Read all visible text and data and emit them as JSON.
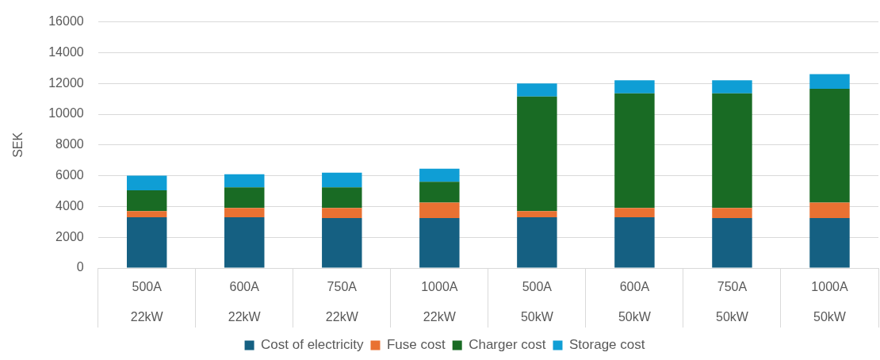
{
  "chart_data": {
    "type": "bar",
    "ylabel": "SEK",
    "categories": [
      "500A\n22kW",
      "600A\n22kW",
      "750A\n22kW",
      "1000A\n22kW",
      "500A\n50kW",
      "600A\n50kW",
      "750A\n50kW",
      "1000A\n50kW"
    ],
    "stacked": true,
    "series": [
      {
        "name": "Cost of electricity",
        "color": "#156082",
        "values": [
          3300,
          3300,
          3250,
          3250,
          3300,
          3300,
          3250,
          3250
        ]
      },
      {
        "name": "Fuse cost",
        "color": "#e97132",
        "values": [
          400,
          600,
          650,
          1000,
          400,
          600,
          650,
          1000
        ]
      },
      {
        "name": "Charger cost",
        "color": "#196b24",
        "values": [
          1350,
          1350,
          1350,
          1350,
          7450,
          7450,
          7450,
          7400
        ]
      },
      {
        "name": "Storage cost",
        "color": "#0f9ed5",
        "values": [
          950,
          850,
          950,
          850,
          850,
          850,
          850,
          950
        ]
      }
    ],
    "ylim": [
      0,
      16000
    ],
    "yticks": [
      0,
      2000,
      4000,
      6000,
      8000,
      10000,
      12000,
      14000,
      16000
    ],
    "grid": "y",
    "legend": "bottom"
  }
}
